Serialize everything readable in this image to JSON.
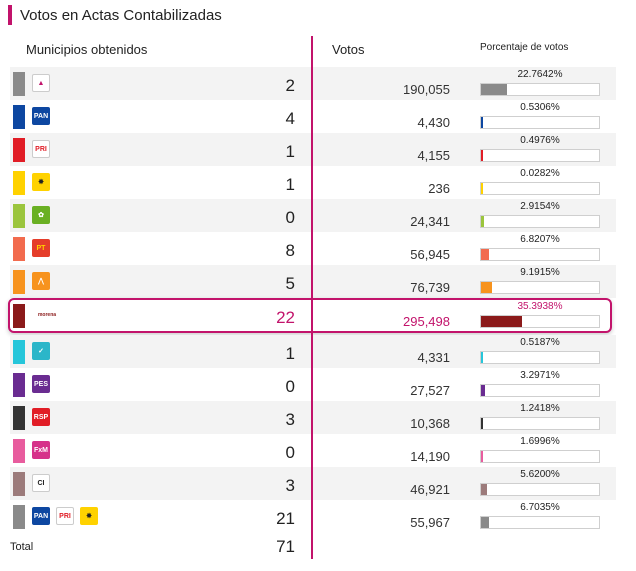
{
  "header": {
    "title": "Votos en Actas Contabilizadas"
  },
  "columns": {
    "municipios": "Municipios obtenidos",
    "votos": "Votos",
    "porcentaje": "Porcentaje de votos"
  },
  "rows": [
    {
      "color": "#8a8a8a",
      "logos": [
        {
          "name": "coalition-logo",
          "bg": "#ffffff",
          "fg": "#c2136b",
          "text": "▲"
        }
      ],
      "municipios": "2",
      "votos": "190,055",
      "porcentaje": "22.7642%",
      "pct": 22.7642
    },
    {
      "color": "#0d47a1",
      "logos": [
        {
          "name": "pan-logo",
          "bg": "#0d47a1",
          "fg": "#fff",
          "text": "PAN"
        }
      ],
      "municipios": "4",
      "votos": "4,430",
      "porcentaje": "0.5306%",
      "pct": 0.5306
    },
    {
      "color": "#e11d26",
      "logos": [
        {
          "name": "pri-logo",
          "bg": "#ffffff",
          "fg": "#e11d26",
          "text": "PRI"
        }
      ],
      "municipios": "1",
      "votos": "4,155",
      "porcentaje": "0.4976%",
      "pct": 0.4976
    },
    {
      "color": "#ffd200",
      "logos": [
        {
          "name": "prd-logo",
          "bg": "#ffd200",
          "fg": "#222",
          "text": "✸"
        }
      ],
      "municipios": "1",
      "votos": "236",
      "porcentaje": "0.0282%",
      "pct": 0.0282
    },
    {
      "color": "#9bc53d",
      "logos": [
        {
          "name": "pvem-logo",
          "bg": "#6ab023",
          "fg": "#fff",
          "text": "✿"
        }
      ],
      "municipios": "0",
      "votos": "24,341",
      "porcentaje": "2.9154%",
      "pct": 2.9154
    },
    {
      "color": "#f26b4e",
      "logos": [
        {
          "name": "pt-logo",
          "bg": "#e53d2a",
          "fg": "#ffd200",
          "text": "PT"
        }
      ],
      "municipios": "8",
      "votos": "56,945",
      "porcentaje": "6.8207%",
      "pct": 6.8207
    },
    {
      "color": "#f7931e",
      "logos": [
        {
          "name": "mc-logo",
          "bg": "#f7931e",
          "fg": "#fff",
          "text": "⋀"
        }
      ],
      "municipios": "5",
      "votos": "76,739",
      "porcentaje": "9.1915%",
      "pct": 9.1915
    },
    {
      "color": "#8b1a1a",
      "logos": [
        {
          "name": "morena-logo",
          "bg": "#ffffff",
          "fg": "#8b1a1a",
          "text": "morena"
        }
      ],
      "municipios": "22",
      "votos": "295,498",
      "porcentaje": "35.3938%",
      "pct": 35.3938,
      "highlight": true
    },
    {
      "color": "#26c6da",
      "logos": [
        {
          "name": "na-logo",
          "bg": "#2bb6c9",
          "fg": "#fff",
          "text": "✓"
        }
      ],
      "municipios": "1",
      "votos": "4,331",
      "porcentaje": "0.5187%",
      "pct": 0.5187
    },
    {
      "color": "#6a2c91",
      "logos": [
        {
          "name": "pes-logo",
          "bg": "#6a2c91",
          "fg": "#fff",
          "text": "PES"
        }
      ],
      "municipios": "0",
      "votos": "27,527",
      "porcentaje": "3.2971%",
      "pct": 3.2971
    },
    {
      "color": "#333333",
      "logos": [
        {
          "name": "rsp-logo",
          "bg": "#e11d26",
          "fg": "#fff",
          "text": "RSP"
        }
      ],
      "municipios": "3",
      "votos": "10,368",
      "porcentaje": "1.2418%",
      "pct": 1.2418
    },
    {
      "color": "#e85c9e",
      "logos": [
        {
          "name": "fxm-logo",
          "bg": "#d6328a",
          "fg": "#fff",
          "text": "FxM"
        }
      ],
      "municipios": "0",
      "votos": "14,190",
      "porcentaje": "1.6996%",
      "pct": 1.6996
    },
    {
      "color": "#9c7b7b",
      "logos": [
        {
          "name": "ci-logo",
          "bg": "#ffffff",
          "fg": "#222",
          "text": "CI"
        }
      ],
      "municipios": "3",
      "votos": "46,921",
      "porcentaje": "5.6200%",
      "pct": 5.62
    },
    {
      "color": "#8a8a8a",
      "logos": [
        {
          "name": "pan-logo",
          "bg": "#0d47a1",
          "fg": "#fff",
          "text": "PAN"
        },
        {
          "name": "pri-logo",
          "bg": "#ffffff",
          "fg": "#e11d26",
          "text": "PRI"
        },
        {
          "name": "prd-logo",
          "bg": "#ffd200",
          "fg": "#222",
          "text": "✸"
        }
      ],
      "municipios": "21",
      "votos": "55,967",
      "porcentaje": "6.7035%",
      "pct": 6.7035
    }
  ],
  "total": {
    "label": "Total",
    "value": "71"
  },
  "colors": {
    "accent": "#c2136b",
    "bar_default": "#8a8a8a"
  }
}
